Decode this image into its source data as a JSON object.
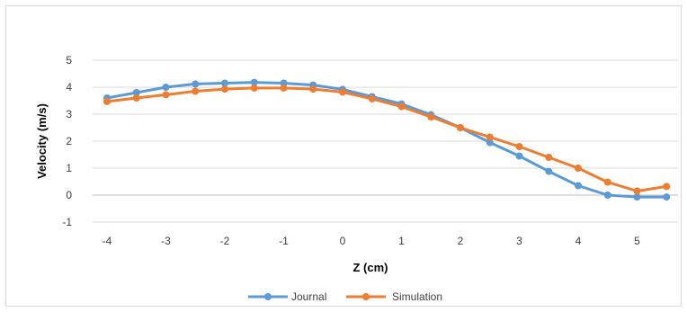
{
  "chart_data": {
    "type": "line",
    "xlabel": "Z (cm)",
    "ylabel": "Velocity  (m/s)",
    "xlim": [
      -4,
      5.5
    ],
    "ylim": [
      -1,
      5
    ],
    "x_ticks": [
      -4,
      -3,
      -2,
      -1,
      0,
      1,
      2,
      3,
      4,
      5
    ],
    "y_ticks": [
      -1,
      0,
      1,
      2,
      3,
      4,
      5
    ],
    "grid": "horizontal",
    "legend_position": "bottom",
    "series": [
      {
        "name": "Journal",
        "color": "#5b9bd5",
        "x": [
          -4,
          -3.5,
          -3,
          -2.5,
          -2,
          -1.5,
          -1,
          -0.5,
          0,
          0.5,
          1,
          1.5,
          2,
          2.5,
          3,
          3.5,
          4,
          4.5,
          5,
          5.5
        ],
        "y": [
          3.6,
          3.8,
          4.0,
          4.12,
          4.15,
          4.18,
          4.15,
          4.08,
          3.92,
          3.65,
          3.38,
          2.98,
          2.5,
          1.95,
          1.45,
          0.88,
          0.35,
          0.0,
          -0.07,
          -0.07
        ]
      },
      {
        "name": "Simulation",
        "color": "#ed7d31",
        "x": [
          -4,
          -3.5,
          -3,
          -2.5,
          -2,
          -1.5,
          -1,
          -0.5,
          0,
          0.5,
          1,
          1.5,
          2,
          2.5,
          3,
          3.5,
          4,
          4.5,
          5,
          5.5
        ],
        "y": [
          3.47,
          3.6,
          3.72,
          3.85,
          3.93,
          3.97,
          3.97,
          3.93,
          3.82,
          3.57,
          3.28,
          2.9,
          2.5,
          2.15,
          1.8,
          1.4,
          1.0,
          0.48,
          0.15,
          0.32
        ]
      }
    ]
  }
}
